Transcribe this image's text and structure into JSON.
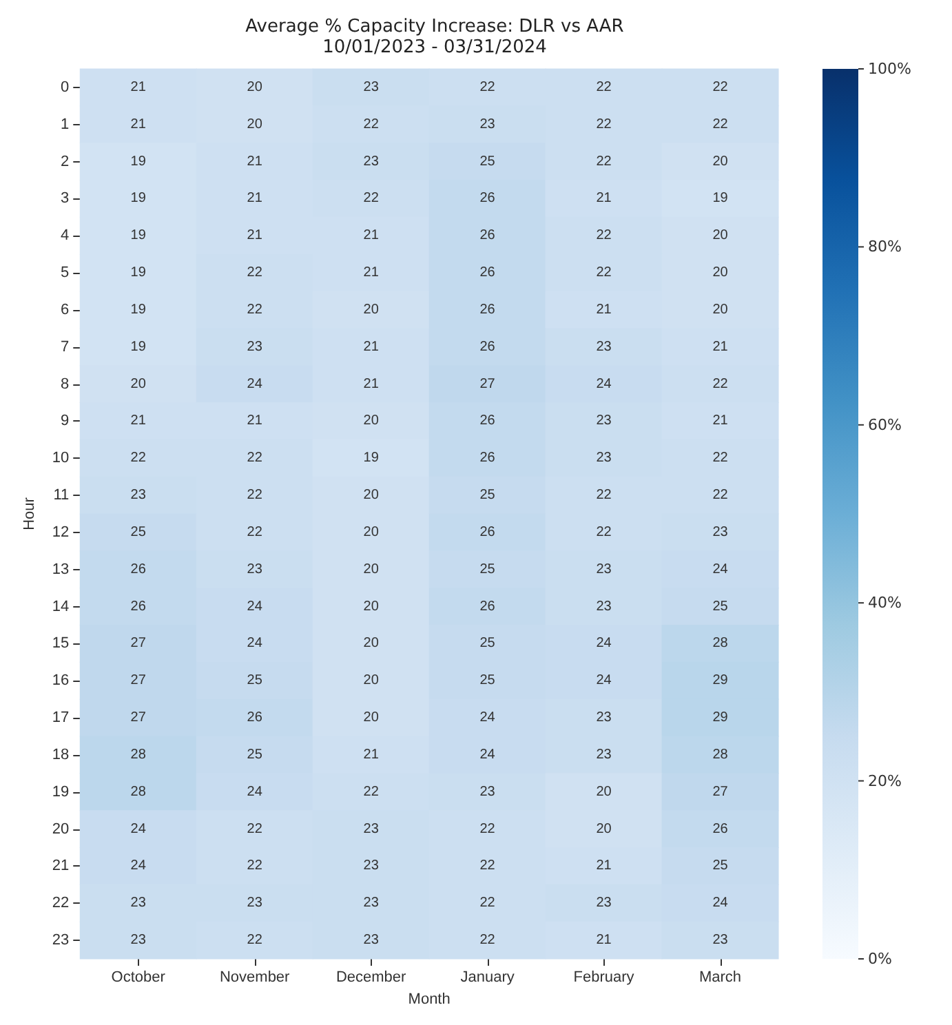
{
  "chart_data": {
    "type": "heatmap",
    "title": "Average % Capacity Increase: DLR vs AAR",
    "subtitle": "10/01/2023 - 03/31/2024",
    "xlabel": "Month",
    "ylabel": "Hour",
    "categories": [
      "October",
      "November",
      "December",
      "January",
      "February",
      "March"
    ],
    "y_categories": [
      "0",
      "1",
      "2",
      "3",
      "4",
      "5",
      "6",
      "7",
      "8",
      "9",
      "10",
      "11",
      "12",
      "13",
      "14",
      "15",
      "16",
      "17",
      "18",
      "19",
      "20",
      "21",
      "22",
      "23"
    ],
    "cells": [
      [
        21,
        20,
        23,
        22,
        22,
        22
      ],
      [
        21,
        20,
        22,
        23,
        22,
        22
      ],
      [
        19,
        21,
        23,
        25,
        22,
        20
      ],
      [
        19,
        21,
        22,
        26,
        21,
        19
      ],
      [
        19,
        21,
        21,
        26,
        22,
        20
      ],
      [
        19,
        22,
        21,
        26,
        22,
        20
      ],
      [
        19,
        22,
        20,
        26,
        21,
        20
      ],
      [
        19,
        23,
        21,
        26,
        23,
        21
      ],
      [
        20,
        24,
        21,
        27,
        24,
        22
      ],
      [
        21,
        21,
        20,
        26,
        23,
        21
      ],
      [
        22,
        22,
        19,
        26,
        23,
        22
      ],
      [
        23,
        22,
        20,
        25,
        22,
        22
      ],
      [
        25,
        22,
        20,
        26,
        22,
        23
      ],
      [
        26,
        23,
        20,
        25,
        23,
        24
      ],
      [
        26,
        24,
        20,
        26,
        23,
        25
      ],
      [
        27,
        24,
        20,
        25,
        24,
        28
      ],
      [
        27,
        25,
        20,
        25,
        24,
        29
      ],
      [
        27,
        26,
        20,
        24,
        23,
        29
      ],
      [
        28,
        25,
        21,
        24,
        23,
        28
      ],
      [
        28,
        24,
        22,
        23,
        20,
        27
      ],
      [
        24,
        22,
        23,
        22,
        20,
        26
      ],
      [
        24,
        22,
        23,
        22,
        21,
        25
      ],
      [
        23,
        23,
        23,
        22,
        23,
        24
      ],
      [
        23,
        22,
        23,
        22,
        21,
        23
      ]
    ],
    "data_labels": true,
    "clim": [
      0,
      100
    ],
    "cticks": [
      {
        "value": 0,
        "label": "0%"
      },
      {
        "value": 20,
        "label": "20%"
      },
      {
        "value": 40,
        "label": "40%"
      },
      {
        "value": 60,
        "label": "60%"
      },
      {
        "value": 80,
        "label": "80%"
      },
      {
        "value": 100,
        "label": "100%"
      }
    ]
  }
}
